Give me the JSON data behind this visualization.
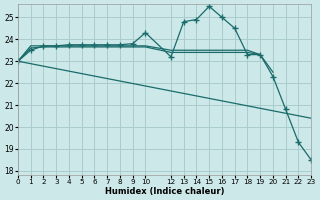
{
  "xlabel": "Humidex (Indice chaleur)",
  "background_color": "#cce8e8",
  "grid_color": "#aacccc",
  "line_color": "#1a6b6b",
  "xlim": [
    0,
    23
  ],
  "ylim": [
    17.8,
    25.6
  ],
  "yticks": [
    18,
    19,
    20,
    21,
    22,
    23,
    24,
    25
  ],
  "xticks": [
    0,
    1,
    2,
    3,
    4,
    5,
    6,
    7,
    8,
    9,
    10,
    12,
    13,
    14,
    15,
    16,
    17,
    18,
    19,
    20,
    21,
    22,
    23
  ],
  "lines": [
    {
      "x": [
        0,
        1,
        2,
        3,
        4,
        5,
        6,
        7,
        8,
        9,
        10,
        12,
        13,
        14,
        15,
        16,
        17,
        18,
        19,
        20,
        21,
        22,
        23
      ],
      "y": [
        23.0,
        23.5,
        23.7,
        23.7,
        23.75,
        23.75,
        23.75,
        23.75,
        23.75,
        23.8,
        24.3,
        23.2,
        24.8,
        24.9,
        25.5,
        25.0,
        24.5,
        23.3,
        23.3,
        22.3,
        20.8,
        19.3,
        18.5
      ],
      "marker": true
    },
    {
      "x": [
        0,
        1,
        2,
        3,
        4,
        5,
        6,
        7,
        8,
        9,
        10,
        12,
        13,
        14,
        15,
        16,
        17,
        18,
        19
      ],
      "y": [
        23.0,
        23.7,
        23.7,
        23.7,
        23.7,
        23.7,
        23.7,
        23.7,
        23.7,
        23.7,
        23.7,
        23.5,
        23.5,
        23.5,
        23.5,
        23.5,
        23.5,
        23.5,
        23.3
      ],
      "marker": false
    },
    {
      "x": [
        0,
        1,
        2,
        3,
        4,
        5,
        6,
        7,
        8,
        9,
        10,
        12,
        13,
        14,
        15,
        16,
        17,
        18,
        19,
        20
      ],
      "y": [
        23.0,
        23.6,
        23.65,
        23.65,
        23.65,
        23.65,
        23.65,
        23.65,
        23.65,
        23.65,
        23.65,
        23.4,
        23.4,
        23.4,
        23.4,
        23.4,
        23.4,
        23.4,
        23.3,
        22.5
      ],
      "marker": false
    },
    {
      "x": [
        0,
        23
      ],
      "y": [
        23.0,
        20.4
      ],
      "marker": false
    }
  ]
}
